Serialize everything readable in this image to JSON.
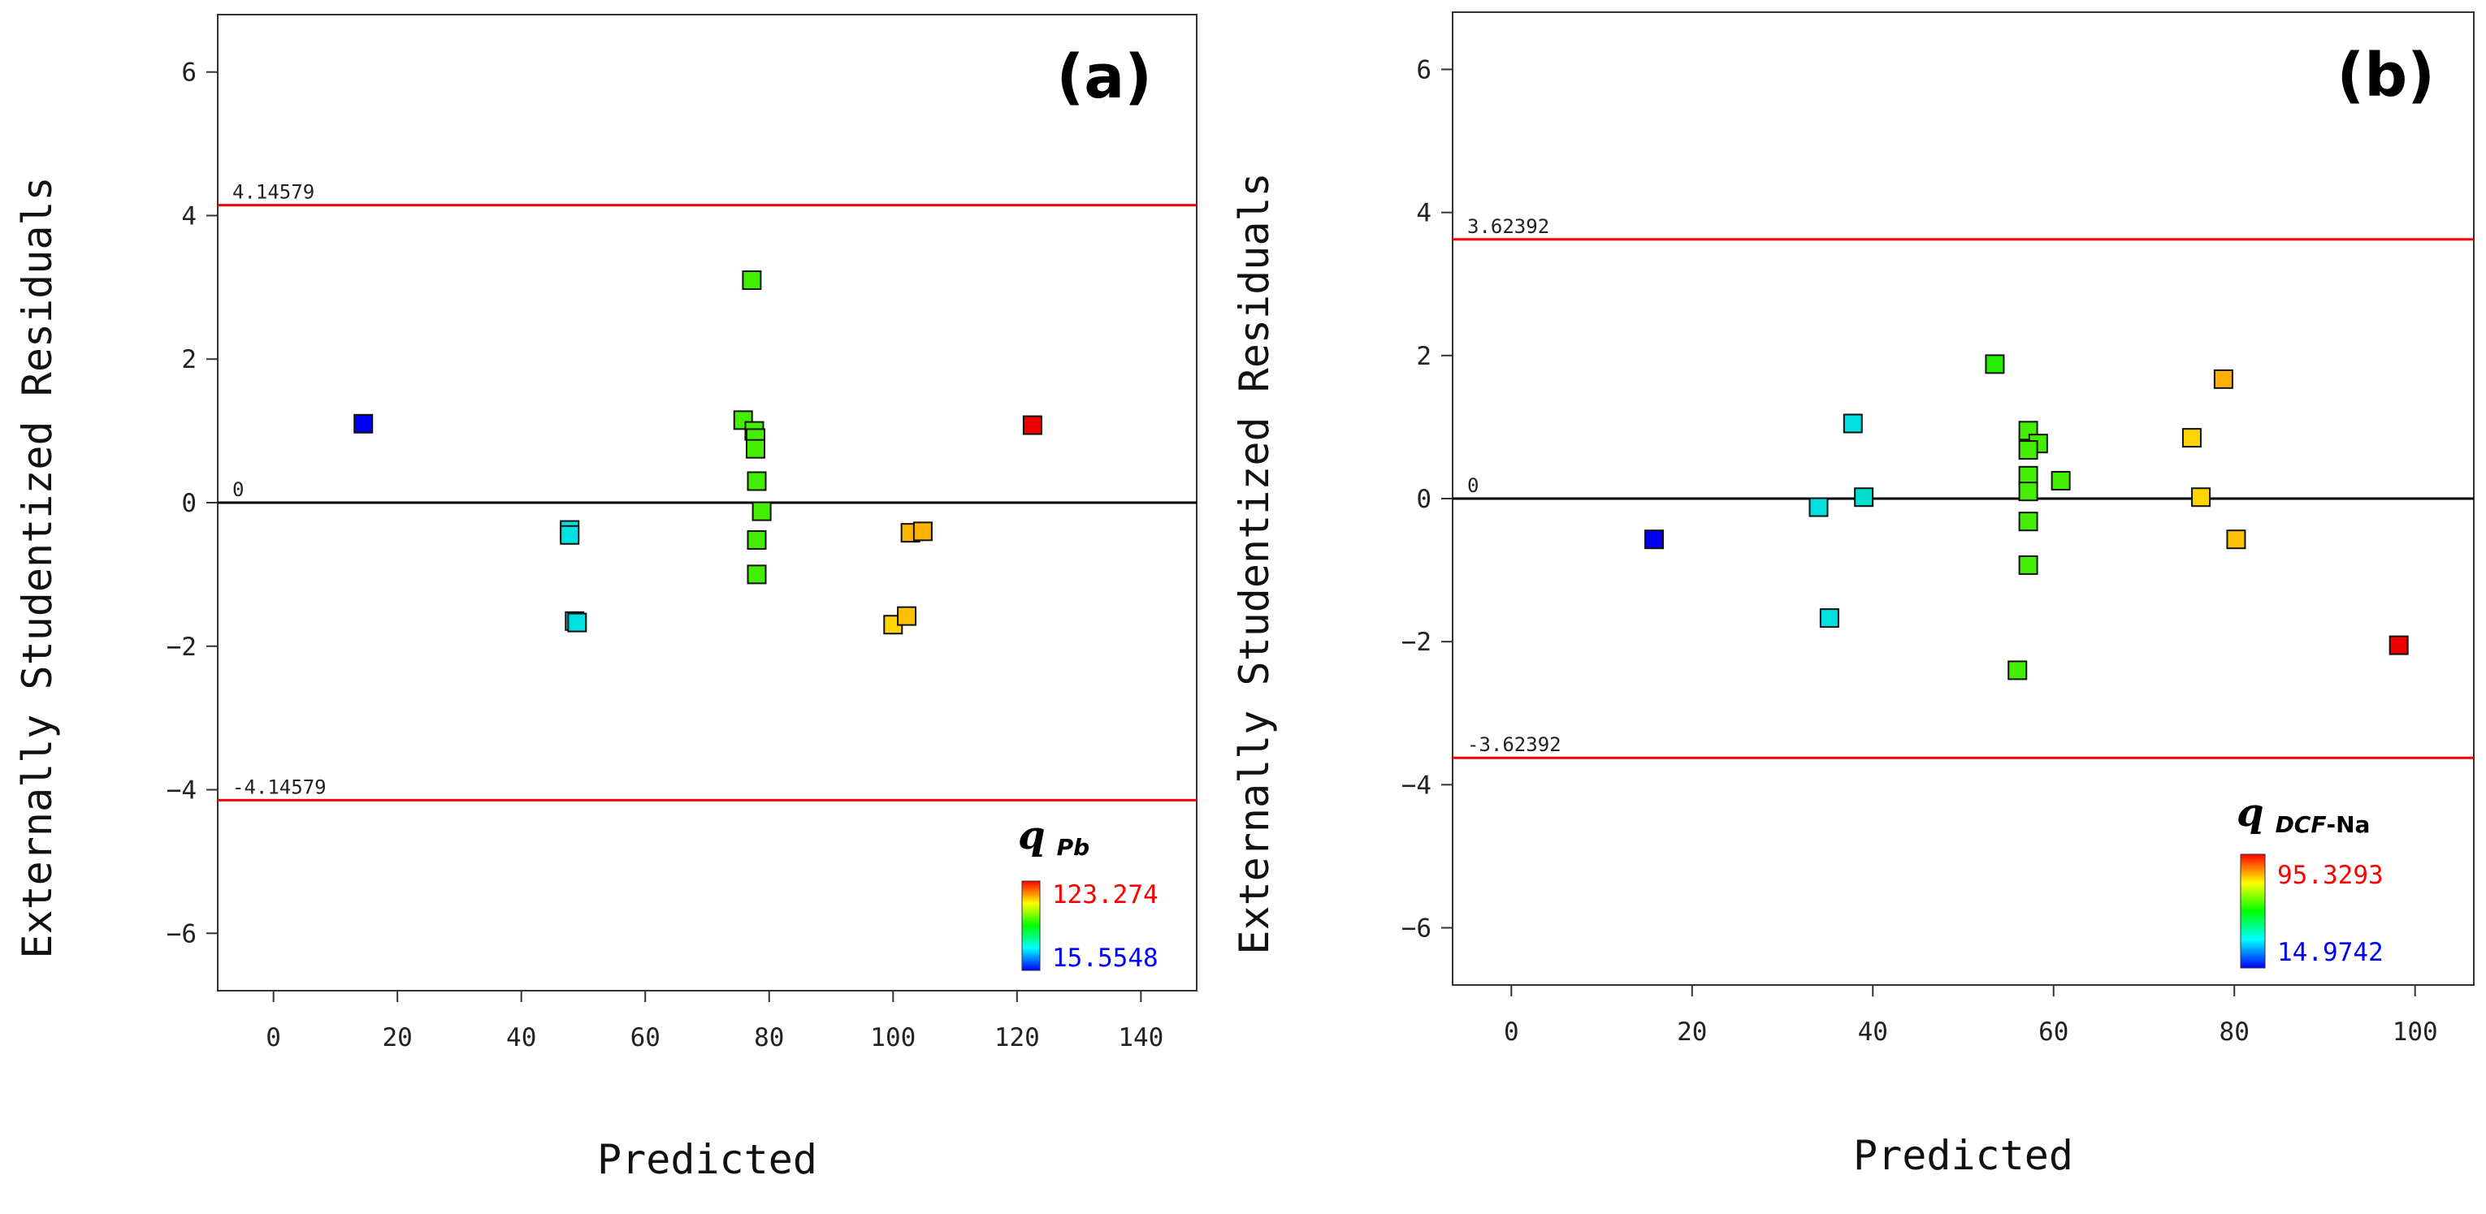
{
  "chart_data": [
    {
      "type": "scatter",
      "panel_label": "(a)",
      "xlabel": "Predicted",
      "ylabel": "Externally Studentized Residuals",
      "xlim": [
        -9,
        149
      ],
      "ylim": [
        -6.8,
        6.8
      ],
      "xticks": [
        0,
        20,
        40,
        60,
        80,
        100,
        120,
        140
      ],
      "yticks": [
        -6,
        -4,
        -2,
        0,
        2,
        4,
        6
      ],
      "reference_lines": [
        {
          "value": 4.14579,
          "label": "4.14579",
          "color": "#ff0000"
        },
        {
          "value": 0,
          "label": "0",
          "color": "#000000"
        },
        {
          "value": -4.14579,
          "label": "-4.14579",
          "color": "#ff0000"
        }
      ],
      "legend": {
        "symbol": "q",
        "subscript": "Pb",
        "subscript_suffix": "",
        "max_label": "123.274",
        "min_label": "15.5548",
        "max": 123.274,
        "min": 15.5548
      },
      "points": [
        {
          "x": 14.5,
          "y": 1.1,
          "color": "#0000ee"
        },
        {
          "x": 47.8,
          "y": -0.38,
          "color": "#00e0e0"
        },
        {
          "x": 47.8,
          "y": -0.45,
          "color": "#00e0e0"
        },
        {
          "x": 48.6,
          "y": -1.65,
          "color": "#00e0e0"
        },
        {
          "x": 49.0,
          "y": -1.67,
          "color": "#00e0e0"
        },
        {
          "x": 77.2,
          "y": 3.1,
          "color": "#44ee00"
        },
        {
          "x": 75.8,
          "y": 1.15,
          "color": "#44ee00"
        },
        {
          "x": 77.6,
          "y": 1.0,
          "color": "#44ee00"
        },
        {
          "x": 77.8,
          "y": 0.9,
          "color": "#44ee00"
        },
        {
          "x": 77.8,
          "y": 0.75,
          "color": "#44ee00"
        },
        {
          "x": 78.0,
          "y": 0.3,
          "color": "#44ee00"
        },
        {
          "x": 78.8,
          "y": -0.12,
          "color": "#44ee00"
        },
        {
          "x": 78.0,
          "y": -0.52,
          "color": "#44ee00"
        },
        {
          "x": 78.0,
          "y": -1.0,
          "color": "#44ee00"
        },
        {
          "x": 100.0,
          "y": -1.7,
          "color": "#ffd400"
        },
        {
          "x": 102.2,
          "y": -1.58,
          "color": "#ffc000"
        },
        {
          "x": 102.8,
          "y": -0.42,
          "color": "#ffb400"
        },
        {
          "x": 104.8,
          "y": -0.4,
          "color": "#ffb000"
        },
        {
          "x": 122.5,
          "y": 1.08,
          "color": "#ee0000"
        }
      ]
    },
    {
      "type": "scatter",
      "panel_label": "(b)",
      "xlabel": "Predicted",
      "ylabel": "Externally Studentized Residuals",
      "xlim": [
        -6.5,
        106.5
      ],
      "ylim": [
        -6.8,
        6.8
      ],
      "xticks": [
        0,
        20,
        40,
        60,
        80,
        100
      ],
      "yticks": [
        -6,
        -4,
        -2,
        0,
        2,
        4,
        6
      ],
      "reference_lines": [
        {
          "value": 3.62392,
          "label": "3.62392",
          "color": "#ff0000"
        },
        {
          "value": 0,
          "label": "0",
          "color": "#000000"
        },
        {
          "value": -3.62392,
          "label": "-3.62392",
          "color": "#ff0000"
        }
      ],
      "legend": {
        "symbol": "q",
        "subscript": "DCF",
        "subscript_suffix": "-Na",
        "max_label": "95.3293",
        "min_label": "14.9742",
        "max": 95.3293,
        "min": 14.9742
      },
      "points": [
        {
          "x": 15.8,
          "y": -0.57,
          "color": "#0000ee"
        },
        {
          "x": 34.0,
          "y": -0.12,
          "color": "#00e0e0"
        },
        {
          "x": 35.2,
          "y": -1.67,
          "color": "#00e0e0"
        },
        {
          "x": 37.8,
          "y": 1.05,
          "color": "#00e0e0"
        },
        {
          "x": 39.0,
          "y": 0.02,
          "color": "#00e0d0"
        },
        {
          "x": 53.5,
          "y": 1.88,
          "color": "#22ee00"
        },
        {
          "x": 57.2,
          "y": 0.95,
          "color": "#44ee00"
        },
        {
          "x": 58.3,
          "y": 0.77,
          "color": "#44ee00"
        },
        {
          "x": 57.2,
          "y": 0.68,
          "color": "#44ee00"
        },
        {
          "x": 57.2,
          "y": 0.32,
          "color": "#44ee00"
        },
        {
          "x": 57.2,
          "y": 0.1,
          "color": "#44ee00"
        },
        {
          "x": 60.8,
          "y": 0.25,
          "color": "#44ee00"
        },
        {
          "x": 57.2,
          "y": -0.32,
          "color": "#44ee00"
        },
        {
          "x": 57.2,
          "y": -0.93,
          "color": "#44ee00"
        },
        {
          "x": 56.0,
          "y": -2.4,
          "color": "#44ee00"
        },
        {
          "x": 75.3,
          "y": 0.85,
          "color": "#ffd400"
        },
        {
          "x": 76.3,
          "y": 0.02,
          "color": "#ffd400"
        },
        {
          "x": 78.8,
          "y": 1.67,
          "color": "#ffb000"
        },
        {
          "x": 80.2,
          "y": -0.57,
          "color": "#ffc000"
        },
        {
          "x": 98.2,
          "y": -2.05,
          "color": "#ee0000"
        }
      ]
    }
  ]
}
